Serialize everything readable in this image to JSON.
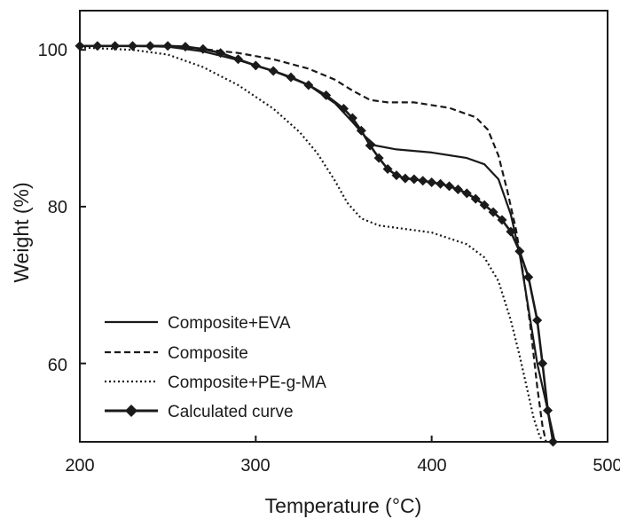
{
  "chart_data": {
    "type": "line",
    "xlabel": "Temperature (°C)",
    "ylabel": "Weight (%)",
    "xlim": [
      200,
      500
    ],
    "ylim": [
      50,
      105
    ],
    "xticks": [
      200,
      300,
      400,
      500
    ],
    "yticks": [
      60,
      80,
      100
    ],
    "xtick_labels": [
      "200",
      "300",
      "400",
      "500"
    ],
    "ytick_labels": [
      "60",
      "80",
      "100"
    ],
    "grid": false,
    "legend_position": "bottom-left",
    "series": [
      {
        "name": "Composite+EVA",
        "style": "solid",
        "color": "#1a1a1a",
        "x": [
          200,
          230,
          250,
          270,
          290,
          310,
          330,
          345,
          355,
          362,
          368,
          380,
          400,
          420,
          430,
          438,
          445,
          450,
          455,
          460,
          465,
          468,
          470
        ],
        "y": [
          100.5,
          100.5,
          100.4,
          99.8,
          98.7,
          97.3,
          95.5,
          93.2,
          90.8,
          89.0,
          87.8,
          87.3,
          86.9,
          86.2,
          85.4,
          83.5,
          79.0,
          74.0,
          67.0,
          60.0,
          55.0,
          52.0,
          50.0
        ]
      },
      {
        "name": "Composite",
        "style": "dashed",
        "color": "#1a1a1a",
        "x": [
          200,
          230,
          250,
          270,
          290,
          310,
          330,
          345,
          355,
          365,
          375,
          390,
          410,
          425,
          432,
          438,
          443,
          448,
          452,
          456,
          460,
          463,
          465
        ],
        "y": [
          100.5,
          100.5,
          100.4,
          100.1,
          99.6,
          98.8,
          97.6,
          96.2,
          94.8,
          93.6,
          93.3,
          93.3,
          92.6,
          91.4,
          89.8,
          86.5,
          82.0,
          77.0,
          71.5,
          65.0,
          57.0,
          52.0,
          50.0
        ]
      },
      {
        "name": "Composite+PE-g-MA",
        "style": "dotted",
        "color": "#1a1a1a",
        "x": [
          200,
          230,
          250,
          270,
          290,
          310,
          325,
          335,
          345,
          352,
          360,
          370,
          380,
          400,
          420,
          430,
          438,
          445,
          450,
          455,
          458,
          461,
          463
        ],
        "y": [
          100.3,
          100.0,
          99.4,
          97.8,
          95.5,
          92.5,
          89.5,
          86.8,
          83.3,
          80.5,
          78.5,
          77.6,
          77.3,
          76.7,
          75.2,
          73.5,
          70.5,
          65.5,
          61.0,
          56.0,
          53.0,
          51.0,
          50.0
        ]
      },
      {
        "name": "Calculated curve",
        "style": "solid-diamond",
        "color": "#1a1a1a",
        "x": [
          200,
          210,
          220,
          230,
          240,
          250,
          260,
          270,
          280,
          290,
          300,
          310,
          320,
          330,
          340,
          350,
          355,
          360,
          365,
          370,
          375,
          380,
          385,
          390,
          395,
          400,
          405,
          410,
          415,
          420,
          425,
          430,
          435,
          440,
          445,
          450,
          455,
          460,
          463,
          466,
          469
        ],
        "y": [
          100.5,
          100.5,
          100.5,
          100.5,
          100.5,
          100.5,
          100.4,
          100.1,
          99.6,
          98.8,
          98.0,
          97.3,
          96.5,
          95.5,
          94.2,
          92.5,
          91.3,
          89.7,
          87.8,
          86.2,
          84.8,
          84.0,
          83.6,
          83.5,
          83.3,
          83.1,
          82.9,
          82.6,
          82.2,
          81.7,
          81.0,
          80.2,
          79.3,
          78.3,
          76.8,
          74.3,
          71.0,
          65.5,
          60.0,
          54.0,
          50.0
        ]
      }
    ]
  }
}
